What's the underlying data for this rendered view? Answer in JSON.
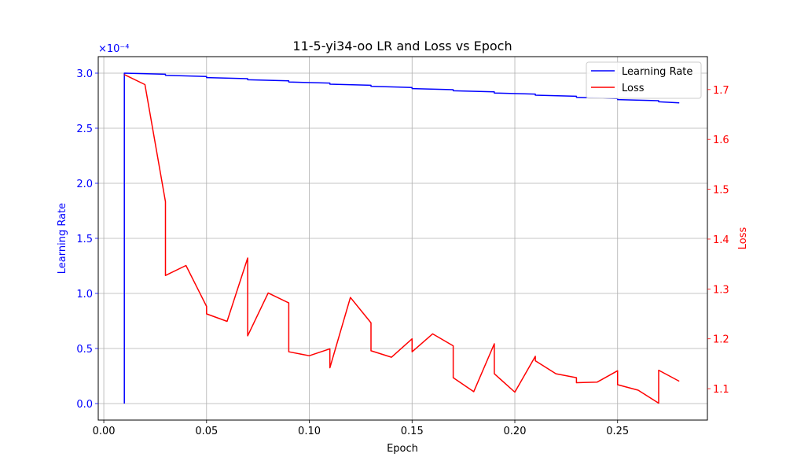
{
  "chart_data": {
    "type": "line",
    "title": "11-5-yi34-oo LR and Loss vs Epoch",
    "xlabel": "Epoch",
    "ylabel": "Learning Rate",
    "y2label": "Loss",
    "y_offset_label": "×10⁻⁴",
    "xlim": [
      -0.0027,
      0.2937
    ],
    "ylim": [
      -0.15,
      3.15
    ],
    "y2lim": [
      1.037,
      1.766
    ],
    "x_ticks": [
      0.0,
      0.05,
      0.1,
      0.15,
      0.2,
      0.25
    ],
    "x_tick_labels": [
      "0.00",
      "0.05",
      "0.10",
      "0.15",
      "0.20",
      "0.25"
    ],
    "y_ticks": [
      0.0,
      0.5,
      1.0,
      1.5,
      2.0,
      2.5,
      3.0
    ],
    "y_tick_labels": [
      "0.0",
      "0.5",
      "1.0",
      "1.5",
      "2.0",
      "2.5",
      "3.0"
    ],
    "y2_ticks": [
      1.1,
      1.2,
      1.3,
      1.4,
      1.5,
      1.6,
      1.7
    ],
    "y2_tick_labels": [
      "1.1",
      "1.2",
      "1.3",
      "1.4",
      "1.5",
      "1.6",
      "1.7"
    ],
    "grid": true,
    "legend_position": "top-right",
    "series": [
      {
        "name": "Learning Rate",
        "axis": "left",
        "color": "#0000ff",
        "x": [
          0.01,
          0.01,
          0.03,
          0.03,
          0.05,
          0.05,
          0.07,
          0.07,
          0.09,
          0.09,
          0.11,
          0.11,
          0.13,
          0.13,
          0.15,
          0.15,
          0.17,
          0.17,
          0.19,
          0.19,
          0.21,
          0.21,
          0.23,
          0.23,
          0.25,
          0.25,
          0.27,
          0.27,
          0.28
        ],
        "y": [
          0.0,
          3.0,
          2.99,
          2.98,
          2.97,
          2.96,
          2.95,
          2.94,
          2.93,
          2.92,
          2.91,
          2.9,
          2.89,
          2.88,
          2.87,
          2.86,
          2.85,
          2.84,
          2.83,
          2.82,
          2.81,
          2.8,
          2.79,
          2.78,
          2.77,
          2.76,
          2.75,
          2.74,
          2.73
        ]
      },
      {
        "name": "Loss",
        "axis": "right",
        "color": "#ff0000",
        "x": [
          0.01,
          0.02,
          0.03,
          0.03,
          0.04,
          0.05,
          0.05,
          0.06,
          0.07,
          0.07,
          0.08,
          0.09,
          0.09,
          0.1,
          0.11,
          0.11,
          0.12,
          0.13,
          0.13,
          0.14,
          0.15,
          0.15,
          0.16,
          0.17,
          0.17,
          0.18,
          0.19,
          0.19,
          0.2,
          0.21,
          0.21,
          0.22,
          0.23,
          0.23,
          0.24,
          0.25,
          0.25,
          0.26,
          0.27,
          0.27,
          0.28
        ],
        "y": [
          1.73,
          1.71,
          1.475,
          1.327,
          1.347,
          1.265,
          1.25,
          1.235,
          1.362,
          1.206,
          1.292,
          1.272,
          1.174,
          1.166,
          1.18,
          1.142,
          1.283,
          1.232,
          1.176,
          1.163,
          1.2,
          1.174,
          1.21,
          1.186,
          1.122,
          1.094,
          1.19,
          1.13,
          1.093,
          1.165,
          1.156,
          1.13,
          1.122,
          1.112,
          1.113,
          1.136,
          1.108,
          1.097,
          1.071,
          1.137,
          1.115
        ]
      }
    ]
  }
}
